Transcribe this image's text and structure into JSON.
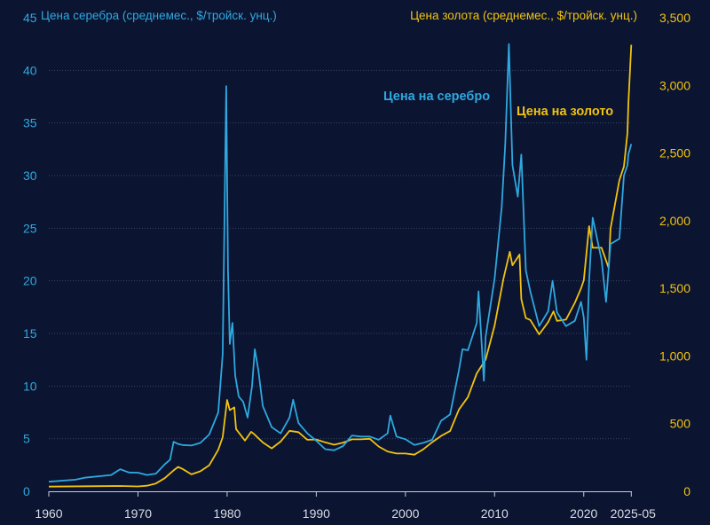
{
  "chart_data": {
    "type": "line",
    "title": "",
    "ylabel_left": "Цена серебра (среднемес., $/тройск. унц.)",
    "ylabel_right": "Цена золота (среднемес., $/тройск. унц.)",
    "xlabel": "",
    "x_ticks": [
      "1960",
      "1970",
      "1980",
      "1990",
      "2000",
      "2010",
      "2020",
      "2025-05"
    ],
    "x_tick_values": [
      1960,
      1970,
      1980,
      1990,
      2000,
      2010,
      2020,
      2025.33
    ],
    "xlim": [
      1960,
      2025.4
    ],
    "y_left_ticks": [
      "0",
      "5",
      "10",
      "15",
      "20",
      "25",
      "30",
      "35",
      "40",
      "45"
    ],
    "y_left_tick_values": [
      0,
      5,
      10,
      15,
      20,
      25,
      30,
      35,
      40,
      45
    ],
    "ylim_left": [
      0,
      45
    ],
    "y_right_ticks": [
      "0",
      "500",
      "1,000",
      "1,500",
      "2,000",
      "2,500",
      "3,000",
      "3,500"
    ],
    "y_right_tick_values": [
      0,
      500,
      1000,
      1500,
      2000,
      2500,
      3000,
      3500
    ],
    "ylim_right": [
      0,
      3500
    ],
    "grid": true,
    "series": [
      {
        "name": "Цена на серебро",
        "axis": "left",
        "color": "#2fa8df",
        "x": [
          1960,
          1963,
          1964,
          1967,
          1968,
          1969,
          1970,
          1971,
          1972,
          1973,
          1973.6,
          1974,
          1974.5,
          1975,
          1976,
          1977,
          1978,
          1979,
          1979.5,
          1979.9,
          1980.1,
          1980.3,
          1980.6,
          1980.9,
          1981.3,
          1981.8,
          1982.3,
          1982.8,
          1983.1,
          1983.5,
          1984,
          1985,
          1986,
          1987,
          1987.4,
          1988,
          1989,
          1990,
          1991,
          1992,
          1993,
          1994,
          1995,
          1996,
          1997,
          1998,
          1998.3,
          1999,
          2000,
          2001,
          2002,
          2003,
          2004,
          2005,
          2006,
          2006.4,
          2007,
          2008,
          2008.2,
          2008.8,
          2009,
          2010,
          2010.8,
          2011.2,
          2011.6,
          2012,
          2012.6,
          2013,
          2013.5,
          2014,
          2015,
          2016,
          2016.5,
          2017,
          2018,
          2019,
          2019.7,
          2020,
          2020.3,
          2020.6,
          2021,
          2022,
          2022.5,
          2023,
          2024,
          2024.5,
          2024.9,
          2025,
          2025.33
        ],
        "values": [
          0.91,
          1.1,
          1.29,
          1.55,
          2.1,
          1.79,
          1.77,
          1.55,
          1.68,
          2.56,
          3.0,
          4.7,
          4.5,
          4.4,
          4.35,
          4.6,
          5.4,
          7.5,
          13.0,
          38.5,
          21.0,
          14.0,
          16.0,
          11.0,
          9.0,
          8.5,
          7.0,
          10.0,
          13.5,
          11.5,
          8.1,
          6.1,
          5.5,
          7.0,
          8.7,
          6.5,
          5.5,
          4.8,
          4.0,
          3.9,
          4.3,
          5.3,
          5.2,
          5.2,
          4.9,
          5.5,
          7.2,
          5.2,
          4.95,
          4.4,
          4.6,
          4.9,
          6.7,
          7.3,
          11.5,
          13.5,
          13.4,
          16.0,
          19.0,
          10.5,
          14.7,
          20.2,
          27.0,
          33.0,
          42.5,
          31.0,
          28.0,
          32.0,
          21.0,
          19.0,
          15.7,
          17.1,
          20.0,
          17.0,
          15.7,
          16.2,
          18.0,
          16.5,
          12.5,
          20.0,
          26.0,
          22.0,
          18.0,
          23.5,
          24.0,
          30.0,
          31.0,
          32.0,
          33.0
        ]
      },
      {
        "name": "Цена на золото",
        "axis": "right",
        "color": "#f2c30f",
        "x": [
          1960,
          1968,
          1970,
          1971,
          1972,
          1973,
          1974,
          1974.5,
          1975,
          1976,
          1977,
          1978,
          1979,
          1979.5,
          1980,
          1980.3,
          1980.8,
          1981,
          1982,
          1982.7,
          1983,
          1984,
          1985,
          1986,
          1987,
          1988,
          1989,
          1990,
          1991,
          1992,
          1993,
          1994,
          1995,
          1996,
          1997,
          1998,
          1999,
          2000,
          2001,
          2002,
          2003,
          2004,
          2005,
          2006,
          2007,
          2008,
          2009,
          2010,
          2011,
          2011.7,
          2012,
          2012.8,
          2013,
          2013.5,
          2014,
          2015,
          2016,
          2016.6,
          2017,
          2018,
          2019,
          2019.7,
          2020,
          2020.6,
          2021,
          2022,
          2022.8,
          2023,
          2024,
          2024.5,
          2024.9,
          2025,
          2025.33
        ],
        "values": [
          35,
          39,
          36,
          41,
          58,
          97,
          155,
          180,
          165,
          125,
          148,
          193,
          307,
          400,
          675,
          600,
          620,
          460,
          375,
          440,
          424,
          361,
          317,
          368,
          447,
          437,
          381,
          383,
          362,
          344,
          360,
          384,
          384,
          388,
          331,
          294,
          279,
          279,
          271,
          310,
          363,
          409,
          445,
          604,
          696,
          872,
          973,
          1225,
          1572,
          1770,
          1670,
          1750,
          1420,
          1280,
          1266,
          1160,
          1250,
          1330,
          1260,
          1269,
          1393,
          1500,
          1560,
          1960,
          1800,
          1800,
          1650,
          1940,
          2300,
          2400,
          2650,
          2860,
          3300
        ]
      }
    ],
    "annotations": [
      "Цена на серебро",
      "Цена на золото"
    ]
  }
}
